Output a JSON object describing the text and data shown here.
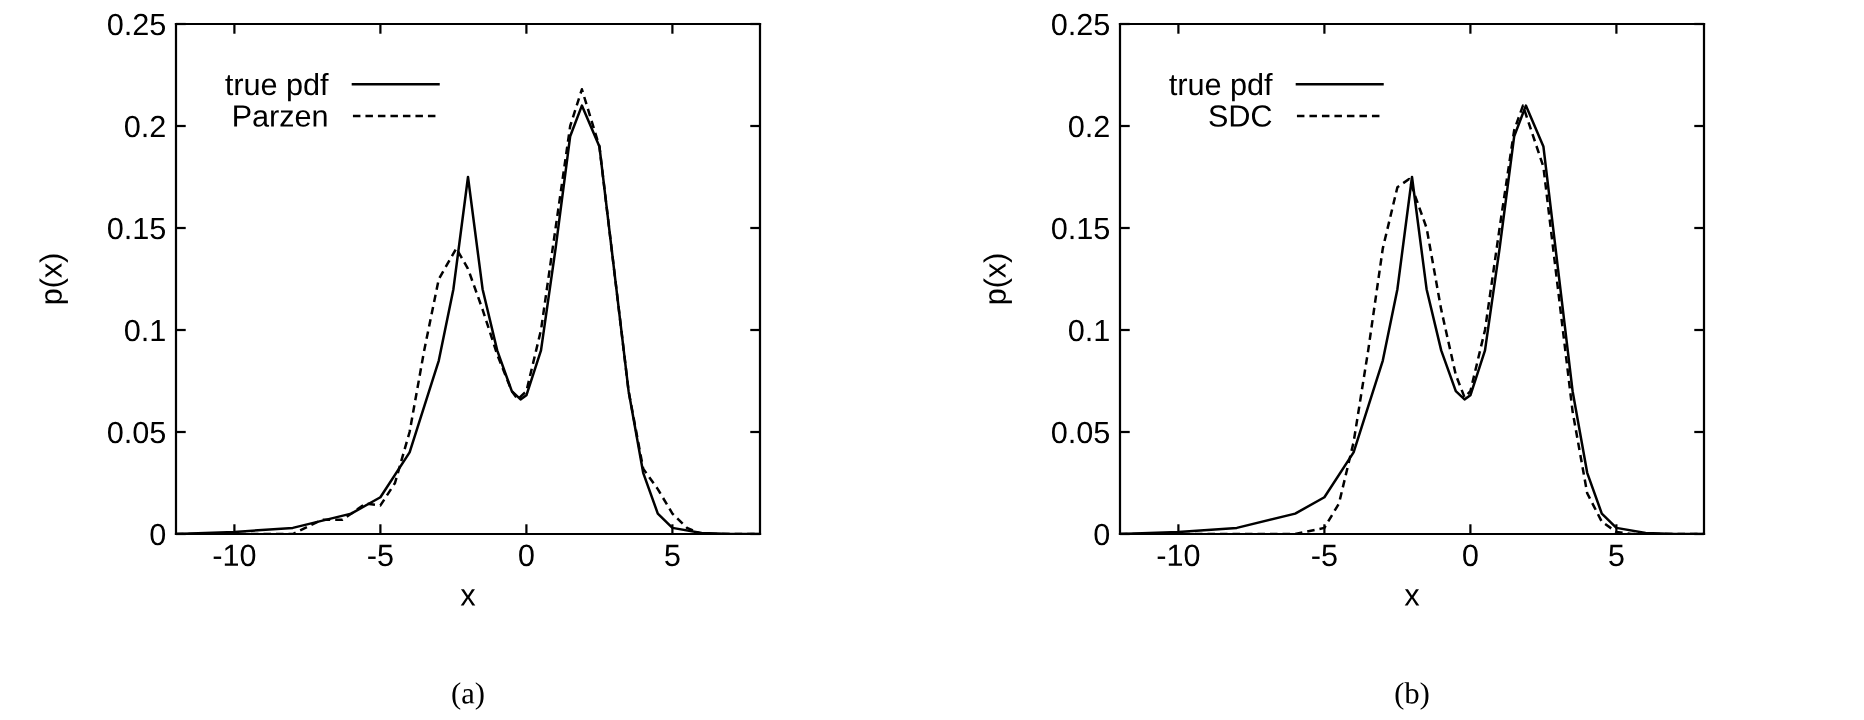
{
  "chart_data": [
    {
      "type": "line",
      "xlabel": "x",
      "ylabel": "p(x)",
      "annotations": [
        "(a)"
      ],
      "xlim": [
        -12,
        8
      ],
      "ylim": [
        0,
        0.25
      ],
      "xticks": [
        -10,
        -5,
        0,
        5
      ],
      "yticks": [
        0,
        0.05,
        0.1,
        0.15,
        0.2,
        0.25
      ],
      "legend": "top left",
      "grid": false,
      "series": [
        {
          "name": "true pdf",
          "color": "#000000",
          "line_style": "solid",
          "x": [
            -12,
            -10,
            -8,
            -6,
            -5,
            -4,
            -3,
            -2.5,
            -2,
            -1.5,
            -1,
            -0.5,
            -0.2,
            0,
            0.5,
            1,
            1.5,
            1.9,
            2.5,
            3,
            3.5,
            4,
            4.5,
            5,
            6,
            7,
            8
          ],
          "values": [
            0,
            0.001,
            0.003,
            0.01,
            0.018,
            0.04,
            0.085,
            0.12,
            0.175,
            0.12,
            0.09,
            0.07,
            0.066,
            0.068,
            0.09,
            0.14,
            0.195,
            0.21,
            0.19,
            0.13,
            0.07,
            0.03,
            0.01,
            0.003,
            0.0005,
            0,
            0
          ]
        },
        {
          "name": "Parzen",
          "color": "#000000",
          "line_style": "dashed",
          "x": [
            -12,
            -8,
            -7,
            -6.3,
            -5.5,
            -5,
            -4.5,
            -4,
            -3.5,
            -3,
            -2.4,
            -2,
            -1.5,
            -1,
            -0.5,
            -0.3,
            0,
            0.5,
            1,
            1.5,
            1.9,
            2.5,
            3,
            3.5,
            4,
            4.5,
            5,
            5.5,
            6,
            8
          ],
          "values": [
            0,
            0,
            0.007,
            0.007,
            0.015,
            0.014,
            0.025,
            0.05,
            0.09,
            0.125,
            0.14,
            0.13,
            0.11,
            0.088,
            0.07,
            0.066,
            0.07,
            0.1,
            0.15,
            0.2,
            0.218,
            0.19,
            0.13,
            0.07,
            0.032,
            0.022,
            0.01,
            0.003,
            0,
            0
          ]
        }
      ]
    },
    {
      "type": "line",
      "xlabel": "x",
      "ylabel": "p(x)",
      "annotations": [
        "(b)"
      ],
      "xlim": [
        -12,
        8
      ],
      "ylim": [
        0,
        0.25
      ],
      "xticks": [
        -10,
        -5,
        0,
        5
      ],
      "yticks": [
        0,
        0.05,
        0.1,
        0.15,
        0.2,
        0.25
      ],
      "legend": "top left",
      "grid": false,
      "series": [
        {
          "name": "true pdf",
          "color": "#000000",
          "line_style": "solid",
          "x": [
            -12,
            -10,
            -8,
            -6,
            -5,
            -4,
            -3,
            -2.5,
            -2,
            -1.5,
            -1,
            -0.5,
            -0.2,
            0,
            0.5,
            1,
            1.5,
            1.9,
            2.5,
            3,
            3.5,
            4,
            4.5,
            5,
            6,
            7,
            8
          ],
          "values": [
            0,
            0.001,
            0.003,
            0.01,
            0.018,
            0.04,
            0.085,
            0.12,
            0.175,
            0.12,
            0.09,
            0.07,
            0.066,
            0.068,
            0.09,
            0.14,
            0.195,
            0.21,
            0.19,
            0.13,
            0.07,
            0.03,
            0.01,
            0.003,
            0.0005,
            0,
            0
          ]
        },
        {
          "name": "SDC",
          "color": "#000000",
          "line_style": "dashed",
          "x": [
            -12,
            -6,
            -5,
            -4.5,
            -4,
            -3.5,
            -3,
            -2.5,
            -2.1,
            -1.5,
            -1,
            -0.5,
            -0.2,
            0,
            0.5,
            1,
            1.5,
            1.8,
            2.5,
            3,
            3.5,
            4,
            4.5,
            5,
            5.5,
            8
          ],
          "values": [
            0,
            0,
            0.003,
            0.015,
            0.045,
            0.09,
            0.14,
            0.17,
            0.174,
            0.15,
            0.11,
            0.078,
            0.067,
            0.07,
            0.1,
            0.15,
            0.198,
            0.21,
            0.18,
            0.12,
            0.06,
            0.02,
            0.006,
            0.001,
            0,
            0
          ]
        }
      ]
    }
  ]
}
